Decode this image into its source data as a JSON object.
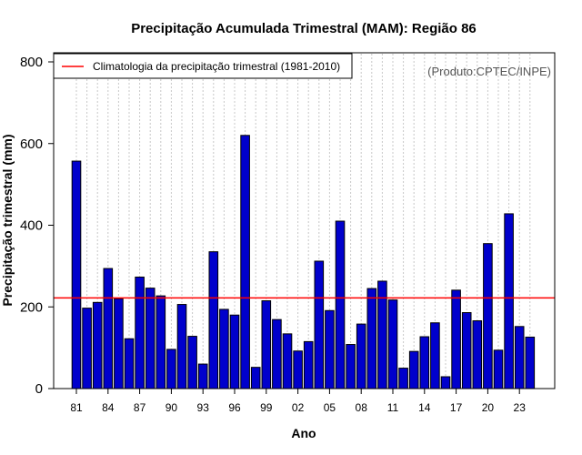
{
  "chart_data": {
    "type": "bar",
    "title": "Precipitação Acumulada Trimestral (MAM): Região 86",
    "xlabel": "Ano",
    "ylabel": "Precipitação trimestral (mm)",
    "ylim": [
      0,
      800
    ],
    "yticks": [
      0,
      200,
      400,
      600,
      800
    ],
    "credit": "(Produto:CPTEC/INPE)",
    "years": [
      1981,
      1982,
      1983,
      1984,
      1985,
      1986,
      1987,
      1988,
      1989,
      1990,
      1991,
      1992,
      1993,
      1994,
      1995,
      1996,
      1997,
      1998,
      1999,
      2000,
      2001,
      2002,
      2003,
      2004,
      2005,
      2006,
      2007,
      2008,
      2009,
      2010,
      2011,
      2012,
      2013,
      2014,
      2015,
      2016,
      2017,
      2018,
      2019,
      2020,
      2021,
      2022,
      2023,
      2024
    ],
    "xtick_labels": [
      {
        "index": 0,
        "label": "81"
      },
      {
        "index": 3,
        "label": "84"
      },
      {
        "index": 6,
        "label": "87"
      },
      {
        "index": 9,
        "label": "90"
      },
      {
        "index": 12,
        "label": "93"
      },
      {
        "index": 15,
        "label": "96"
      },
      {
        "index": 18,
        "label": "99"
      },
      {
        "index": 21,
        "label": "02"
      },
      {
        "index": 24,
        "label": "05"
      },
      {
        "index": 27,
        "label": "08"
      },
      {
        "index": 30,
        "label": "11"
      },
      {
        "index": 33,
        "label": "14"
      },
      {
        "index": 36,
        "label": "17"
      },
      {
        "index": 39,
        "label": "20"
      },
      {
        "index": 42,
        "label": "23"
      }
    ],
    "values": [
      557,
      197,
      211,
      294,
      220,
      122,
      273,
      246,
      227,
      96,
      206,
      128,
      60,
      335,
      194,
      180,
      620,
      52,
      215,
      169,
      134,
      92,
      115,
      312,
      191,
      410,
      108,
      158,
      245,
      263,
      217,
      50,
      91,
      127,
      161,
      29,
      241,
      186,
      166,
      355,
      94,
      428,
      152,
      126
    ],
    "climatology": {
      "value": 222,
      "label": "Climatologia da precipitação trimestral (1981-2010)"
    },
    "colors": {
      "bar": "#0000cc",
      "bar_border": "#000000",
      "climatology": "#ff0000",
      "grid": "#c8c8c8"
    }
  }
}
